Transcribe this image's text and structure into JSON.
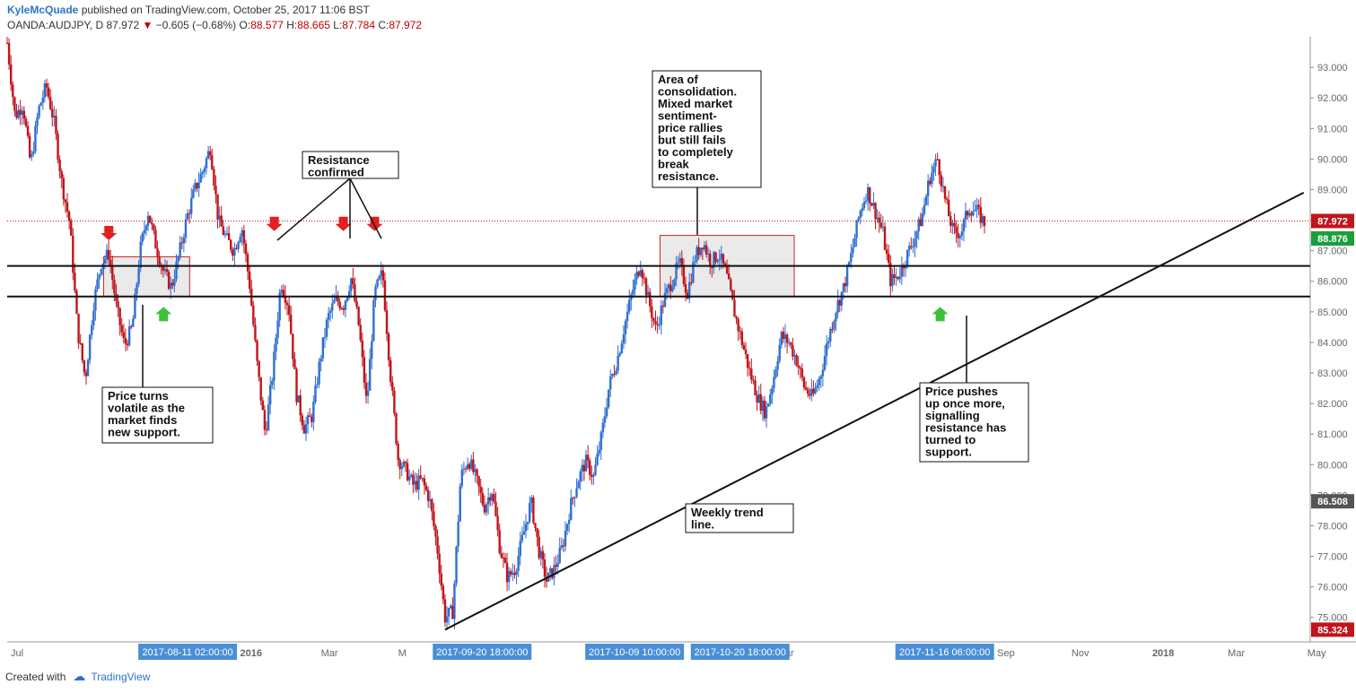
{
  "header": {
    "author": "KyleMcQuade",
    "published": "published on TradingView.com, October 25, 2017 11:06 BST",
    "symbol": "OANDA:AUDJPY, D",
    "last": "87.972",
    "change": "−0.605 (−0.68%)",
    "open_label": "O:",
    "open": "88.577",
    "high_label": "H:",
    "high": "88.665",
    "low_label": "L:",
    "low": "87.784",
    "close_label": "C:",
    "close": "87.972"
  },
  "footer": {
    "created_with": "Created with",
    "brand": "TradingView"
  },
  "colors": {
    "up": "#2f6fd0",
    "down": "#c0151b",
    "grid": "#dde3ea",
    "axis": "#666",
    "annotation_box": "#d9d9d9"
  },
  "chart_data": {
    "type": "candlestick",
    "symbol": "OANDA:AUDJPY",
    "interval": "D",
    "ylim": [
      74.2,
      94.0
    ],
    "y_ticks": [
      "93.000",
      "92.000",
      "91.000",
      "90.000",
      "89.000",
      "88.000",
      "87.000",
      "86.000",
      "85.000",
      "84.000",
      "83.000",
      "82.000",
      "81.000",
      "80.000",
      "79.000",
      "78.000",
      "77.000",
      "76.000",
      "75.000"
    ],
    "x_ticks": [
      {
        "label": "Jul",
        "t": 0.0
      },
      {
        "label": "2016",
        "t": 0.176
      },
      {
        "label": "Mar",
        "t": 0.238
      },
      {
        "label": "Sep",
        "t": 0.757
      },
      {
        "label": "Mar",
        "t": 0.588
      },
      {
        "label": "Nov",
        "t": 0.814
      },
      {
        "label": "2018",
        "t": 0.876
      },
      {
        "label": "Mar",
        "t": 0.934
      },
      {
        "label": "May",
        "t": 0.995
      }
    ],
    "crosshair_labels": [
      {
        "label": "2017-08-11 02:00:00",
        "t": 0.102
      },
      {
        "label": "2017-09-20 18:00:00",
        "t": 0.328
      },
      {
        "label": "2017-10-09 10:00:00",
        "t": 0.445
      },
      {
        "label": "2017-10-20 18:00:00",
        "t": 0.526
      },
      {
        "label": "2017-11-16 06:00:00",
        "t": 0.683
      }
    ],
    "partial_axis_label": "M",
    "price_labels": [
      {
        "label": "87.972",
        "value": 87.972,
        "color": "#c0151b"
      },
      {
        "label": "88.876",
        "value": 87.4,
        "color": "#1a9f3a"
      },
      {
        "label": "86.508",
        "value": 78.8,
        "color": "#555555"
      },
      {
        "label": "85.324",
        "value": 74.6,
        "color": "#c0151b"
      }
    ],
    "last_price": 87.972,
    "path": [
      [
        0.0,
        93.8
      ],
      [
        0.006,
        91.4
      ],
      [
        0.012,
        91.8
      ],
      [
        0.018,
        89.8
      ],
      [
        0.024,
        91.6
      ],
      [
        0.03,
        92.4
      ],
      [
        0.036,
        91.2
      ],
      [
        0.042,
        89.2
      ],
      [
        0.048,
        87.9
      ],
      [
        0.054,
        84.4
      ],
      [
        0.06,
        82.8
      ],
      [
        0.066,
        85.2
      ],
      [
        0.072,
        86.6
      ],
      [
        0.078,
        86.9
      ],
      [
        0.084,
        85.1
      ],
      [
        0.09,
        83.9
      ],
      [
        0.096,
        84.5
      ],
      [
        0.102,
        87.0
      ],
      [
        0.108,
        88.3
      ],
      [
        0.114,
        87.2
      ],
      [
        0.12,
        86.3
      ],
      [
        0.126,
        85.8
      ],
      [
        0.132,
        86.9
      ],
      [
        0.138,
        88.1
      ],
      [
        0.144,
        89.0
      ],
      [
        0.15,
        89.6
      ],
      [
        0.156,
        90.4
      ],
      [
        0.162,
        88.0
      ],
      [
        0.168,
        87.4
      ],
      [
        0.174,
        87.0
      ],
      [
        0.18,
        87.8
      ],
      [
        0.186,
        85.9
      ],
      [
        0.192,
        83.2
      ],
      [
        0.198,
        81.0
      ],
      [
        0.204,
        83.1
      ],
      [
        0.21,
        86.0
      ],
      [
        0.216,
        85.2
      ],
      [
        0.222,
        82.3
      ],
      [
        0.228,
        81.2
      ],
      [
        0.234,
        81.6
      ],
      [
        0.24,
        83.4
      ],
      [
        0.246,
        84.8
      ],
      [
        0.252,
        85.4
      ],
      [
        0.258,
        85.2
      ],
      [
        0.264,
        86.1
      ],
      [
        0.27,
        84.5
      ],
      [
        0.276,
        81.9
      ],
      [
        0.282,
        85.6
      ],
      [
        0.288,
        86.3
      ],
      [
        0.294,
        83.0
      ],
      [
        0.3,
        80.2
      ],
      [
        0.306,
        79.8
      ],
      [
        0.312,
        79.3
      ],
      [
        0.318,
        79.5
      ],
      [
        0.324,
        78.9
      ],
      [
        0.33,
        77.3
      ],
      [
        0.336,
        75.0
      ],
      [
        0.342,
        75.2
      ],
      [
        0.348,
        79.6
      ],
      [
        0.354,
        80.2
      ],
      [
        0.36,
        79.5
      ],
      [
        0.366,
        78.6
      ],
      [
        0.372,
        79.2
      ],
      [
        0.378,
        77.3
      ],
      [
        0.384,
        76.3
      ],
      [
        0.39,
        76.6
      ],
      [
        0.396,
        77.7
      ],
      [
        0.402,
        78.8
      ],
      [
        0.408,
        77.2
      ],
      [
        0.414,
        76.2
      ],
      [
        0.42,
        76.6
      ],
      [
        0.426,
        77.3
      ],
      [
        0.432,
        78.6
      ],
      [
        0.438,
        79.5
      ],
      [
        0.444,
        80.1
      ],
      [
        0.45,
        79.6
      ],
      [
        0.456,
        80.9
      ],
      [
        0.462,
        82.6
      ],
      [
        0.468,
        83.4
      ],
      [
        0.474,
        84.6
      ],
      [
        0.48,
        85.7
      ],
      [
        0.486,
        86.6
      ],
      [
        0.492,
        85.4
      ],
      [
        0.498,
        84.4
      ],
      [
        0.504,
        85.4
      ],
      [
        0.51,
        86.0
      ],
      [
        0.516,
        86.6
      ],
      [
        0.522,
        85.6
      ],
      [
        0.528,
        86.8
      ],
      [
        0.534,
        87.3
      ],
      [
        0.54,
        86.6
      ],
      [
        0.546,
        86.9
      ],
      [
        0.552,
        86.2
      ],
      [
        0.558,
        85.0
      ],
      [
        0.564,
        84.0
      ],
      [
        0.57,
        83.0
      ],
      [
        0.576,
        82.2
      ],
      [
        0.582,
        81.7
      ],
      [
        0.588,
        82.8
      ],
      [
        0.594,
        84.2
      ],
      [
        0.6,
        84.0
      ],
      [
        0.606,
        83.4
      ],
      [
        0.612,
        82.5
      ],
      [
        0.618,
        82.2
      ],
      [
        0.624,
        82.9
      ],
      [
        0.63,
        84.1
      ],
      [
        0.636,
        85.1
      ],
      [
        0.642,
        85.8
      ],
      [
        0.648,
        86.9
      ],
      [
        0.654,
        88.2
      ],
      [
        0.66,
        89.0
      ],
      [
        0.666,
        88.3
      ],
      [
        0.672,
        87.6
      ],
      [
        0.678,
        86.0
      ],
      [
        0.684,
        86.2
      ],
      [
        0.69,
        86.8
      ],
      [
        0.696,
        87.4
      ],
      [
        0.702,
        88.1
      ],
      [
        0.708,
        89.4
      ],
      [
        0.714,
        90.0
      ],
      [
        0.72,
        88.6
      ],
      [
        0.726,
        87.6
      ],
      [
        0.732,
        87.6
      ],
      [
        0.738,
        88.4
      ],
      [
        0.744,
        88.3
      ],
      [
        0.75,
        87.9
      ]
    ],
    "horizontal_levels": [
      86.5,
      85.5
    ],
    "trend_line": [
      [
        0.336,
        74.6
      ],
      [
        0.995,
        88.9
      ]
    ],
    "zones": [
      {
        "name": "support-zone-1",
        "t0": 0.074,
        "t1": 0.14,
        "lo": 85.5,
        "hi": 86.8
      },
      {
        "name": "consolidation-zone",
        "t0": 0.501,
        "t1": 0.604,
        "lo": 85.5,
        "hi": 87.5
      }
    ],
    "annotations": [
      {
        "id": "volatile",
        "lines": [
          "Price turns",
          "volatile as the",
          "market finds",
          "new support."
        ]
      },
      {
        "id": "resistance",
        "lines": [
          "Resistance",
          "confirmed"
        ]
      },
      {
        "id": "consolidation",
        "lines": [
          "Area of",
          "consolidation.",
          "Mixed market",
          "sentiment-",
          "price rallies",
          "but still fails",
          "to completely",
          "break",
          "resistance."
        ]
      },
      {
        "id": "pushes",
        "lines": [
          "Price pushes",
          "up once more,",
          "signalling",
          "resistance has",
          "turned to",
          "support."
        ]
      },
      {
        "id": "weekly",
        "lines": [
          "Weekly trend",
          "line."
        ]
      }
    ],
    "red_arrows": [
      {
        "t": 0.078,
        "value": 87.4
      },
      {
        "t": 0.205,
        "value": 87.7
      },
      {
        "t": 0.258,
        "value": 87.7
      },
      {
        "t": 0.282,
        "value": 87.7
      }
    ],
    "green_arrows": [
      {
        "t": 0.12,
        "value": 85.1
      },
      {
        "t": 0.716,
        "value": 85.1
      }
    ]
  }
}
